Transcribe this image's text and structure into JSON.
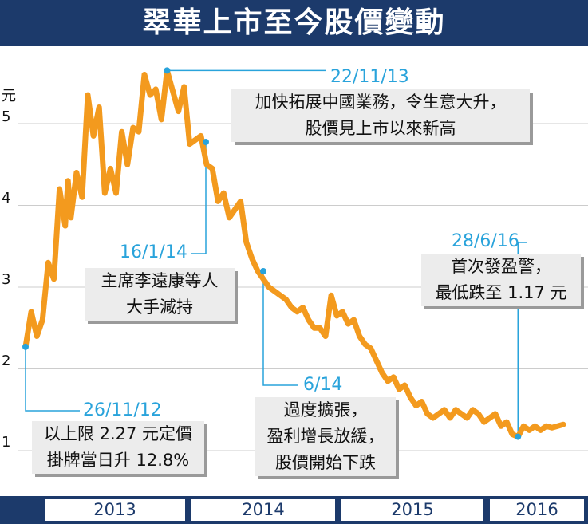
{
  "title": "翠華上市至今股價變動",
  "chart_data": {
    "type": "line",
    "title": "翠華上市至今股價變動",
    "ylabel": "元",
    "xlabel": "",
    "ylim": [
      1,
      5
    ],
    "y_ticks": [
      "1",
      "2",
      "3",
      "4",
      "5"
    ],
    "x_categories": [
      "2013",
      "2014",
      "2015",
      "2016"
    ],
    "series": [
      {
        "name": "",
        "color": "#f39a1e",
        "x": [
          0,
          2,
          4,
          6,
          8,
          10,
          12,
          14,
          15,
          16,
          18,
          20,
          22,
          24,
          26,
          28,
          30,
          32,
          34,
          36,
          38,
          40,
          42,
          44,
          46,
          48,
          50,
          52,
          54,
          56,
          58,
          60,
          62,
          64,
          66,
          68,
          70,
          72,
          74,
          76,
          78,
          80,
          82,
          84,
          86,
          88,
          90,
          92,
          94,
          96,
          98,
          100,
          102,
          104,
          106,
          108,
          110,
          112,
          114,
          116,
          118,
          120,
          122,
          124,
          126,
          128,
          130,
          132,
          134,
          136,
          138,
          140,
          142,
          144,
          146,
          148,
          150,
          152,
          154,
          156,
          158,
          160,
          162,
          164,
          166,
          168,
          170,
          172,
          174,
          176,
          178,
          180,
          182,
          184,
          186,
          188,
          190
        ],
        "y": [
          2.27,
          2.7,
          2.4,
          2.6,
          3.3,
          3.1,
          4.2,
          3.75,
          4.3,
          3.85,
          4.4,
          4.1,
          5.35,
          4.85,
          5.2,
          4.15,
          4.45,
          4.15,
          4.9,
          4.5,
          4.95,
          4.9,
          5.6,
          5.35,
          5.42,
          5.05,
          5.65,
          5.4,
          5.15,
          5.45,
          4.75,
          4.8,
          4.85,
          4.5,
          4.45,
          4.05,
          4.15,
          3.85,
          3.95,
          4.05,
          3.55,
          3.35,
          3.2,
          3.1,
          3.0,
          2.95,
          2.9,
          2.85,
          2.75,
          2.7,
          2.75,
          2.6,
          2.5,
          2.5,
          2.4,
          2.9,
          2.65,
          2.7,
          2.55,
          2.6,
          2.4,
          2.3,
          2.25,
          2.1,
          1.95,
          1.85,
          1.9,
          1.75,
          1.8,
          1.65,
          1.55,
          1.6,
          1.45,
          1.4,
          1.45,
          1.5,
          1.4,
          1.5,
          1.45,
          1.4,
          1.5,
          1.45,
          1.35,
          1.4,
          1.45,
          1.3,
          1.35,
          1.2,
          1.17,
          1.3,
          1.25,
          1.3,
          1.25,
          1.3,
          1.28,
          1.3,
          1.32
        ]
      }
    ],
    "annotations": [
      {
        "date": "26/11/12",
        "lines": [
          "以上限 2.27 元定價",
          "掛牌當日升 12.8%"
        ]
      },
      {
        "date": "22/11/13",
        "lines": [
          "加快拓展中國業務，令生意大升，",
          "股價見上市以來新高"
        ]
      },
      {
        "date": "16/1/14",
        "lines": [
          "主席李遠康等人",
          "大手減持"
        ]
      },
      {
        "date": "6/14",
        "lines": [
          "過度擴張，",
          "盈利增長放緩，",
          "股價開始下跌"
        ]
      },
      {
        "date": "28/6/16",
        "lines": [
          "首次發盈警，",
          "最低跌至 1.17 元"
        ]
      }
    ]
  }
}
